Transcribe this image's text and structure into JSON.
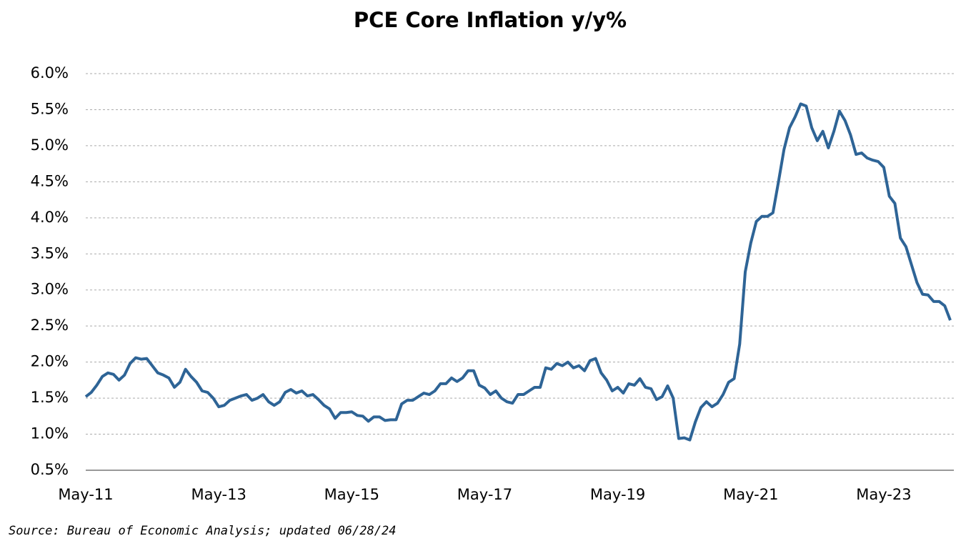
{
  "chart_data": {
    "type": "line",
    "title": "PCE Core Inflation y/y%",
    "categories": [
      "May-11",
      null,
      null,
      null,
      null,
      null,
      null,
      null,
      null,
      null,
      null,
      null,
      null,
      null,
      null,
      null,
      null,
      null,
      null,
      null,
      null,
      null,
      null,
      null,
      "May-13",
      null,
      null,
      null,
      null,
      null,
      null,
      null,
      null,
      null,
      null,
      null,
      null,
      null,
      null,
      null,
      null,
      null,
      null,
      null,
      null,
      null,
      null,
      null,
      "May-15",
      null,
      null,
      null,
      null,
      null,
      null,
      null,
      null,
      null,
      null,
      null,
      null,
      null,
      null,
      null,
      null,
      null,
      null,
      null,
      null,
      null,
      null,
      null,
      "May-17",
      null,
      null,
      null,
      null,
      null,
      null,
      null,
      null,
      null,
      null,
      null,
      null,
      null,
      null,
      null,
      null,
      null,
      null,
      null,
      null,
      null,
      null,
      null,
      "May-19",
      null,
      null,
      null,
      null,
      null,
      null,
      null,
      null,
      null,
      null,
      null,
      null,
      null,
      null,
      null,
      null,
      null,
      null,
      null,
      null,
      null,
      null,
      null,
      "May-21",
      null,
      null,
      null,
      null,
      null,
      null,
      null,
      null,
      null,
      null,
      null,
      null,
      null,
      null,
      null,
      null,
      null,
      null,
      null,
      null,
      null,
      null,
      null,
      "May-23",
      null,
      null,
      null,
      null,
      null,
      null,
      null,
      null,
      null,
      null,
      null,
      null
    ],
    "values": [
      1.52,
      1.58,
      1.68,
      1.8,
      1.85,
      1.83,
      1.75,
      1.82,
      1.98,
      2.06,
      2.04,
      2.05,
      1.95,
      1.85,
      1.82,
      1.78,
      1.65,
      1.72,
      1.9,
      1.8,
      1.72,
      1.6,
      1.58,
      1.5,
      1.38,
      1.4,
      1.47,
      1.5,
      1.53,
      1.55,
      1.47,
      1.5,
      1.55,
      1.45,
      1.4,
      1.45,
      1.58,
      1.62,
      1.57,
      1.6,
      1.53,
      1.55,
      1.48,
      1.4,
      1.35,
      1.22,
      1.3,
      1.3,
      1.31,
      1.26,
      1.25,
      1.18,
      1.24,
      1.24,
      1.19,
      1.2,
      1.2,
      1.42,
      1.47,
      1.47,
      1.52,
      1.57,
      1.55,
      1.6,
      1.7,
      1.7,
      1.78,
      1.73,
      1.78,
      1.88,
      1.88,
      1.68,
      1.64,
      1.55,
      1.6,
      1.5,
      1.45,
      1.43,
      1.55,
      1.55,
      1.6,
      1.65,
      1.65,
      1.92,
      1.9,
      1.98,
      1.95,
      2.0,
      1.92,
      1.95,
      1.88,
      2.02,
      2.05,
      1.85,
      1.75,
      1.6,
      1.65,
      1.57,
      1.7,
      1.68,
      1.77,
      1.65,
      1.63,
      1.48,
      1.52,
      1.67,
      1.5,
      0.94,
      0.95,
      0.92,
      1.17,
      1.37,
      1.45,
      1.38,
      1.43,
      1.55,
      1.72,
      1.77,
      2.25,
      3.25,
      3.65,
      3.95,
      4.02,
      4.02,
      4.07,
      4.5,
      4.95,
      5.25,
      5.4,
      5.58,
      5.55,
      5.25,
      5.07,
      5.2,
      4.97,
      5.2,
      5.48,
      5.35,
      5.15,
      4.88,
      4.9,
      4.83,
      4.8,
      4.78,
      4.7,
      4.3,
      4.2,
      3.72,
      3.6,
      3.35,
      3.1,
      2.94,
      2.93,
      2.84,
      2.84,
      2.78,
      2.58
    ],
    "color": "#2e6496",
    "ylim": [
      0.5,
      6.0
    ],
    "yticks": [
      {
        "value": 0.5,
        "label": "0.5%"
      },
      {
        "value": 1.0,
        "label": "1.0%"
      },
      {
        "value": 1.5,
        "label": "1.5%"
      },
      {
        "value": 2.0,
        "label": "2.0%"
      },
      {
        "value": 2.5,
        "label": "2.5%"
      },
      {
        "value": 3.0,
        "label": "3.0%"
      },
      {
        "value": 3.5,
        "label": "3.5%"
      },
      {
        "value": 4.0,
        "label": "4.0%"
      },
      {
        "value": 4.5,
        "label": "4.5%"
      },
      {
        "value": 5.0,
        "label": "5.0%"
      },
      {
        "value": 5.5,
        "label": "5.5%"
      },
      {
        "value": 6.0,
        "label": "6.0%"
      }
    ],
    "grid": true,
    "source": "Source: Bureau of Economic Analysis; updated 06/28/24"
  }
}
